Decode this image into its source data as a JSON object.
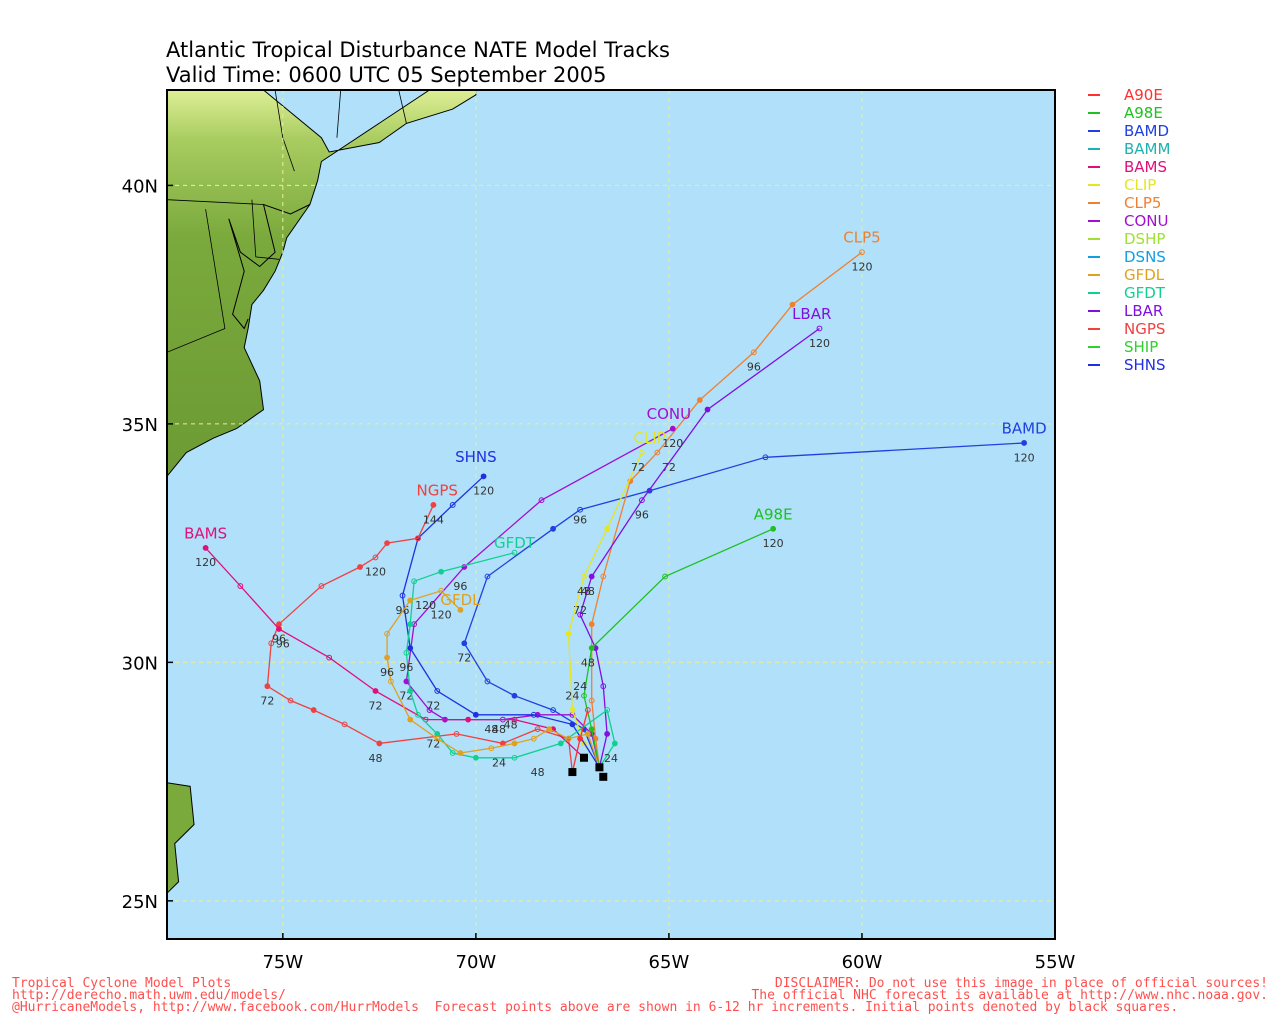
{
  "title": {
    "line1": "Atlantic Tropical Disturbance NATE Model Tracks",
    "line2": "Valid Time: 0600 UTC 05 September 2005"
  },
  "colors": {
    "ocean": "#b0e0fa",
    "land": "#7aa93c",
    "grid": "#e6f0a0",
    "frame": "#000000"
  },
  "axes": {
    "lon_labels": [
      {
        "lon": -75,
        "text": "75W"
      },
      {
        "lon": -70,
        "text": "70W"
      },
      {
        "lon": -65,
        "text": "65W"
      },
      {
        "lon": -60,
        "text": "60W"
      },
      {
        "lon": -55,
        "text": "55W"
      }
    ],
    "lat_labels": [
      {
        "lat": 40,
        "text": "40N"
      },
      {
        "lat": 35,
        "text": "35N"
      },
      {
        "lat": 30,
        "text": "30N"
      },
      {
        "lat": 25,
        "text": "25N"
      }
    ],
    "lon_range": [
      -78,
      -55
    ],
    "lat_range": [
      24.2,
      42
    ]
  },
  "legend": [
    {
      "name": "A90E",
      "color": "#ff3030"
    },
    {
      "name": "A98E",
      "color": "#20c020"
    },
    {
      "name": "BAMD",
      "color": "#2040e0"
    },
    {
      "name": "BAMM",
      "color": "#20b0b0"
    },
    {
      "name": "BAMS",
      "color": "#e0107a"
    },
    {
      "name": "CLIP",
      "color": "#e6e620"
    },
    {
      "name": "CLP5",
      "color": "#f08030"
    },
    {
      "name": "CONU",
      "color": "#a010d0"
    },
    {
      "name": "DSHP",
      "color": "#a0e030"
    },
    {
      "name": "DSNS",
      "color": "#10a0e0"
    },
    {
      "name": "GFDL",
      "color": "#e0a020"
    },
    {
      "name": "GFDT",
      "color": "#10d090"
    },
    {
      "name": "LBAR",
      "color": "#8010e0"
    },
    {
      "name": "NGPS",
      "color": "#f04040"
    },
    {
      "name": "SHIP",
      "color": "#30d030"
    },
    {
      "name": "SHNS",
      "color": "#2030e0"
    }
  ],
  "tracks": [
    {
      "model": "BAMD",
      "color": "#2040e0",
      "label": "BAMD",
      "label_pos": [
        -55.8,
        34.8
      ],
      "points": [
        [
          -66.8,
          27.8
        ],
        [
          -67.2,
          28.6
        ],
        [
          -68.0,
          29.0
        ],
        [
          -69.0,
          29.3
        ],
        [
          -69.7,
          29.6
        ],
        [
          -70.3,
          30.4
        ],
        [
          -69.7,
          31.8
        ],
        [
          -68.0,
          32.8
        ],
        [
          -67.3,
          33.2
        ],
        [
          -65.5,
          33.6
        ],
        [
          -62.5,
          34.3
        ],
        [
          -55.8,
          34.6
        ]
      ],
      "ticks": [
        {
          "pos": [
            -69.1,
            28.7
          ],
          "text": "48"
        },
        {
          "pos": [
            -70.3,
            30.1
          ],
          "text": "72"
        },
        [
          -67.3,
          33.0,
          "96"
        ],
        {
          "pos": [
            -55.8,
            34.3
          ],
          "text": "120"
        }
      ]
    },
    {
      "model": "CLP5",
      "color": "#f08030",
      "label": "CLP5",
      "label_pos": [
        -60.0,
        38.8
      ],
      "points": [
        [
          -66.8,
          27.8
        ],
        [
          -66.9,
          28.4
        ],
        [
          -67.0,
          29.2
        ],
        [
          -67.0,
          30.8
        ],
        [
          -66.7,
          31.8
        ],
        [
          -66.0,
          33.8
        ],
        [
          -65.3,
          34.4
        ],
        [
          -64.2,
          35.5
        ],
        [
          -62.8,
          36.5
        ],
        [
          -61.8,
          37.5
        ],
        [
          -60.0,
          38.6
        ]
      ],
      "ticks": [
        {
          "pos": [
            -67.1,
            31.5
          ],
          "text": "48"
        },
        {
          "pos": [
            -65.0,
            34.1
          ],
          "text": "72"
        },
        {
          "pos": [
            -62.8,
            36.2
          ],
          "text": "96"
        },
        {
          "pos": [
            -60.0,
            38.3
          ],
          "text": "120"
        }
      ]
    },
    {
      "model": "LBAR",
      "color": "#8010e0",
      "label": "LBAR",
      "label_pos": [
        -61.3,
        37.2
      ],
      "points": [
        [
          -66.8,
          27.8
        ],
        [
          -66.6,
          28.5
        ],
        [
          -66.7,
          29.5
        ],
        [
          -66.9,
          30.3
        ],
        [
          -67.3,
          31.0
        ],
        [
          -67.0,
          31.8
        ],
        [
          -65.7,
          33.4
        ],
        [
          -64.0,
          35.3
        ],
        [
          -61.1,
          37.0
        ]
      ],
      "ticks": [
        {
          "pos": [
            -67.3,
            31.1
          ],
          "text": "72"
        },
        {
          "pos": [
            -65.7,
            33.1
          ],
          "text": "96"
        },
        {
          "pos": [
            -61.1,
            36.7
          ],
          "text": "120"
        }
      ]
    },
    {
      "model": "CONU",
      "color": "#a010d0",
      "label": "CONU",
      "label_pos": [
        -65.0,
        35.1
      ],
      "points": [
        [
          -66.8,
          27.8
        ],
        [
          -67.0,
          28.5
        ],
        [
          -67.5,
          28.9
        ],
        [
          -68.4,
          28.9
        ],
        [
          -69.3,
          28.8
        ],
        [
          -70.8,
          28.8
        ],
        [
          -71.2,
          29.0
        ],
        [
          -71.8,
          29.6
        ],
        [
          -71.6,
          30.8
        ],
        [
          -70.3,
          32.0
        ],
        [
          -68.3,
          33.4
        ],
        [
          -64.9,
          34.9
        ]
      ],
      "ticks": [
        {
          "pos": [
            -69.6,
            28.6
          ],
          "text": "48"
        },
        {
          "pos": [
            -71.8,
            29.3
          ],
          "text": "72"
        },
        {
          "pos": [
            -70.4,
            31.6
          ],
          "text": "96"
        },
        {
          "pos": [
            -64.9,
            34.6
          ],
          "text": "120"
        }
      ]
    },
    {
      "model": "CLIP",
      "color": "#e6e620",
      "label": "CLIP",
      "label_pos": [
        -65.5,
        34.6
      ],
      "points": [
        [
          -66.8,
          27.8
        ],
        [
          -67.2,
          28.3
        ],
        [
          -67.5,
          29.0
        ],
        [
          -67.6,
          30.6
        ],
        [
          -67.2,
          31.8
        ],
        [
          -66.6,
          32.8
        ],
        [
          -65.7,
          34.4
        ]
      ],
      "ticks": [
        {
          "pos": [
            -67.5,
            29.3
          ],
          "text": "24"
        },
        {
          "pos": [
            -67.2,
            31.5
          ],
          "text": "48"
        },
        {
          "pos": [
            -65.8,
            34.1
          ],
          "text": "72"
        }
      ]
    },
    {
      "model": "A98E",
      "color": "#20c020",
      "label": "A98E",
      "label_pos": [
        -62.3,
        33.0
      ],
      "points": [
        [
          -66.8,
          27.8
        ],
        [
          -67.0,
          28.6
        ],
        [
          -67.2,
          29.3
        ],
        [
          -67.0,
          30.3
        ],
        [
          -65.1,
          31.8
        ],
        [
          -62.3,
          32.8
        ]
      ],
      "ticks": [
        {
          "pos": [
            -67.3,
            29.5
          ],
          "text": "24"
        },
        {
          "pos": [
            -67.1,
            30.0
          ],
          "text": "48"
        },
        {
          "pos": [
            -62.3,
            32.5
          ],
          "text": "120"
        }
      ]
    },
    {
      "model": "SHNS",
      "color": "#2030e0",
      "label": "SHNS",
      "label_pos": [
        -70.0,
        34.2
      ],
      "points": [
        [
          -66.8,
          27.8
        ],
        [
          -67.5,
          28.7
        ],
        [
          -68.5,
          28.9
        ],
        [
          -70.0,
          28.9
        ],
        [
          -71.0,
          29.4
        ],
        [
          -71.7,
          30.3
        ],
        [
          -71.9,
          31.4
        ],
        [
          -71.5,
          32.6
        ],
        [
          -70.6,
          33.3
        ],
        [
          -69.8,
          33.9
        ]
      ],
      "ticks": [
        {
          "pos": [
            -69.4,
            28.6
          ],
          "text": "48"
        },
        {
          "pos": [
            -71.1,
            29.1
          ],
          "text": "72"
        },
        {
          "pos": [
            -71.9,
            31.1
          ],
          "text": "96"
        },
        {
          "pos": [
            -69.8,
            33.6
          ],
          "text": "120"
        }
      ]
    },
    {
      "model": "NGPS",
      "color": "#f04040",
      "label": "NGPS",
      "label_pos": [
        -71.0,
        33.5
      ],
      "points": [
        [
          -67.5,
          27.7
        ],
        [
          -67.6,
          28.4
        ],
        [
          -68.4,
          28.6
        ],
        [
          -69.3,
          28.3
        ],
        [
          -70.5,
          28.5
        ],
        [
          -72.5,
          28.3
        ],
        [
          -73.4,
          28.7
        ],
        [
          -74.2,
          29.0
        ],
        [
          -74.8,
          29.2
        ],
        [
          -75.4,
          29.5
        ],
        [
          -75.3,
          30.4
        ],
        [
          -75.1,
          30.8
        ],
        [
          -74.0,
          31.6
        ],
        [
          -73.0,
          32.0
        ],
        [
          -72.6,
          32.2
        ],
        [
          -72.3,
          32.5
        ],
        [
          -71.5,
          32.6
        ],
        [
          -71.1,
          33.3
        ]
      ],
      "ticks": [
        {
          "pos": [
            -72.6,
            28.0
          ],
          "text": "48"
        },
        {
          "pos": [
            -75.4,
            29.2
          ],
          "text": "72"
        },
        {
          "pos": [
            -75.1,
            30.5
          ],
          "text": "96"
        },
        {
          "pos": [
            -72.6,
            31.9
          ],
          "text": "120"
        },
        {
          "pos": [
            -71.1,
            33.0
          ],
          "text": "144"
        }
      ]
    },
    {
      "model": "BAMS",
      "color": "#e0107a",
      "label": "BAMS",
      "label_pos": [
        -77.0,
        32.6
      ],
      "points": [
        [
          -67.2,
          28.0
        ],
        [
          -68.0,
          28.6
        ],
        [
          -69.0,
          28.8
        ],
        [
          -70.2,
          28.8
        ],
        [
          -71.3,
          28.8
        ],
        [
          -72.6,
          29.4
        ],
        [
          -73.8,
          30.1
        ],
        [
          -75.1,
          30.7
        ],
        [
          -76.1,
          31.6
        ],
        [
          -77.0,
          32.4
        ]
      ],
      "ticks": [
        {
          "pos": [
            -72.6,
            29.1
          ],
          "text": "72"
        },
        {
          "pos": [
            -75.0,
            30.4
          ],
          "text": "96"
        },
        {
          "pos": [
            -77.0,
            32.1
          ],
          "text": "120"
        }
      ]
    },
    {
      "model": "GFDT",
      "color": "#10d090",
      "label": "GFDT",
      "label_pos": [
        -69.0,
        32.4
      ],
      "points": [
        [
          -66.8,
          27.8
        ],
        [
          -66.4,
          28.3
        ],
        [
          -66.6,
          29.0
        ],
        [
          -67.8,
          28.3
        ],
        [
          -69.0,
          28.0
        ],
        [
          -70.0,
          28.0
        ],
        [
          -70.6,
          28.1
        ],
        [
          -71.0,
          28.5
        ],
        [
          -71.5,
          28.9
        ],
        [
          -71.7,
          29.4
        ],
        [
          -71.8,
          30.2
        ],
        [
          -71.7,
          30.8
        ],
        [
          -71.6,
          31.7
        ],
        [
          -70.9,
          31.9
        ],
        [
          -69.0,
          32.3
        ]
      ],
      "ticks": [
        {
          "pos": [
            -66.5,
            28.0
          ],
          "text": "24"
        },
        {
          "pos": [
            -68.4,
            27.7
          ],
          "text": "48"
        },
        {
          "pos": [
            -71.1,
            28.3
          ],
          "text": "72"
        },
        {
          "pos": [
            -71.8,
            29.9
          ],
          "text": "96"
        },
        {
          "pos": [
            -71.3,
            31.2
          ],
          "text": "120"
        }
      ]
    },
    {
      "model": "GFDL",
      "color": "#e0a020",
      "label": "GFDL",
      "label_pos": [
        -70.4,
        31.2
      ],
      "points": [
        [
          -66.8,
          27.8
        ],
        [
          -67.1,
          28.5
        ],
        [
          -67.6,
          28.4
        ],
        [
          -68.1,
          28.6
        ],
        [
          -68.5,
          28.4
        ],
        [
          -69.0,
          28.3
        ],
        [
          -69.6,
          28.2
        ],
        [
          -70.4,
          28.1
        ],
        [
          -71.0,
          28.4
        ],
        [
          -71.7,
          28.8
        ],
        [
          -72.2,
          29.6
        ],
        [
          -72.3,
          30.1
        ],
        [
          -72.3,
          30.6
        ],
        [
          -71.7,
          31.3
        ],
        [
          -70.9,
          31.5
        ],
        [
          -70.4,
          31.1
        ]
      ],
      "ticks": [
        {
          "pos": [
            -69.4,
            27.9
          ],
          "text": "24"
        },
        {
          "pos": [
            -72.3,
            29.8
          ],
          "text": "96"
        },
        {
          "pos": [
            -70.9,
            31.0
          ],
          "text": "120"
        }
      ]
    },
    {
      "model": "A90E",
      "color": "#ff3030",
      "label": "",
      "label_pos": [
        0,
        0
      ],
      "points": [
        [
          -67.5,
          27.7
        ],
        [
          -67.3,
          28.4
        ],
        [
          -67.1,
          29.0
        ]
      ],
      "ticks": []
    }
  ],
  "initial_points": [
    [
      -67.5,
      27.7
    ],
    [
      -66.8,
      27.8
    ],
    [
      -66.7,
      27.6
    ],
    [
      -67.2,
      28.0
    ]
  ],
  "coast": [
    [
      [
        -78,
        42
      ],
      [
        -75.5,
        42
      ],
      [
        -74.0,
        41.0
      ],
      [
        -73.8,
        40.7
      ],
      [
        -72.5,
        40.9
      ],
      [
        -71.8,
        41.3
      ],
      [
        -70.6,
        41.6
      ],
      [
        -70.0,
        41.9
      ],
      [
        -70.0,
        42.0
      ],
      [
        -69.7,
        42.0
      ],
      [
        -71.2,
        42.0
      ]
    ],
    [
      [
        -74.0,
        40.5
      ],
      [
        -74.1,
        40.1
      ],
      [
        -74.3,
        39.6
      ],
      [
        -74.9,
        38.9
      ],
      [
        -75.0,
        38.6
      ],
      [
        -75.2,
        38.2
      ],
      [
        -75.5,
        37.8
      ],
      [
        -75.8,
        37.5
      ],
      [
        -75.9,
        37.0
      ],
      [
        -76.0,
        36.6
      ],
      [
        -75.6,
        35.9
      ],
      [
        -75.5,
        35.3
      ],
      [
        -76.2,
        34.9
      ],
      [
        -76.8,
        34.7
      ],
      [
        -77.5,
        34.4
      ],
      [
        -78.0,
        33.9
      ]
    ],
    [
      [
        -74.3,
        39.6
      ],
      [
        -74.8,
        39.4
      ],
      [
        -75.5,
        39.6
      ],
      [
        -75.2,
        38.6
      ],
      [
        -75.6,
        38.3
      ],
      [
        -76.1,
        38.6
      ],
      [
        -76.4,
        39.3
      ],
      [
        -76.0,
        38.2
      ],
      [
        -76.3,
        37.3
      ],
      [
        -76.0,
        37.0
      ],
      [
        -75.9,
        37.2
      ]
    ]
  ],
  "footer": {
    "left_line1": "Tropical Cyclone Model Plots",
    "left_line2": "http://derecho.math.uwm.edu/models/",
    "left_line3": "@HurricaneModels, http://www.facebook.com/HurrModels  Forecast points above are shown in 6-12 hr increments. Initial points denoted by black squares.",
    "right_line1": "DISCLAIMER: Do not use this image in place of official sources!",
    "right_line2": "The official NHC forecast is available at http://www.nhc.noaa.gov."
  }
}
